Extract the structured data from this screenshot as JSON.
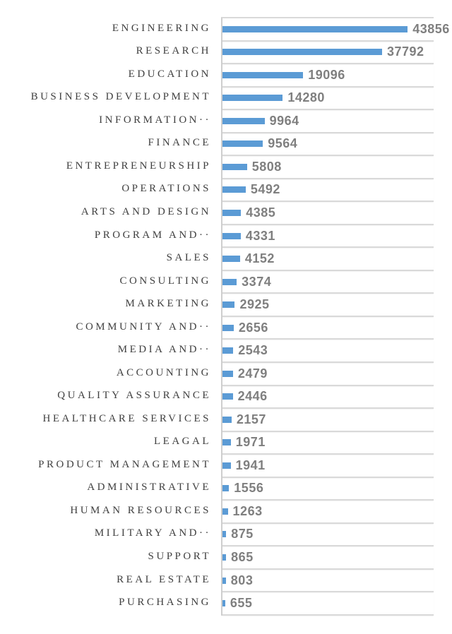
{
  "chart_data": {
    "type": "bar",
    "orientation": "horizontal",
    "title": "",
    "xlabel": "",
    "ylabel": "",
    "xlim": [
      0,
      50000
    ],
    "grid": "category-separator-lines",
    "legend": "none",
    "data_labels": "outside-end",
    "categories": [
      "ENGINEERING",
      "RESEARCH",
      "EDUCATION",
      "BUSINESS DEVELOPMENT",
      "INFORMATION··",
      "FINANCE",
      "ENTREPRENEURSHIP",
      "OPERATIONS",
      "ARTS AND DESIGN",
      "PROGRAM AND··",
      "SALES",
      "CONSULTING",
      "MARKETING",
      "COMMUNITY AND··",
      "MEDIA AND··",
      "ACCOUNTING",
      "QUALITY ASSURANCE",
      "HEALTHCARE SERVICES",
      "LEAGAL",
      "PRODUCT MANAGEMENT",
      "ADMINISTRATIVE",
      "HUMAN RESOURCES",
      "MILITARY AND··",
      "SUPPORT",
      "REAL ESTATE",
      "PURCHASING"
    ],
    "values": [
      43856,
      37792,
      19096,
      14280,
      9964,
      9564,
      5808,
      5492,
      4385,
      4331,
      4152,
      3374,
      2925,
      2656,
      2543,
      2479,
      2446,
      2157,
      1971,
      1941,
      1556,
      1263,
      875,
      865,
      803,
      655
    ],
    "colors": {
      "bar": "#5B9BD5",
      "gridline": "#D9D9D9",
      "axis_line": "#CFCFCF",
      "category_text": "#404040",
      "value_text": "#7F7F7F",
      "background": "#FFFFFF"
    }
  }
}
